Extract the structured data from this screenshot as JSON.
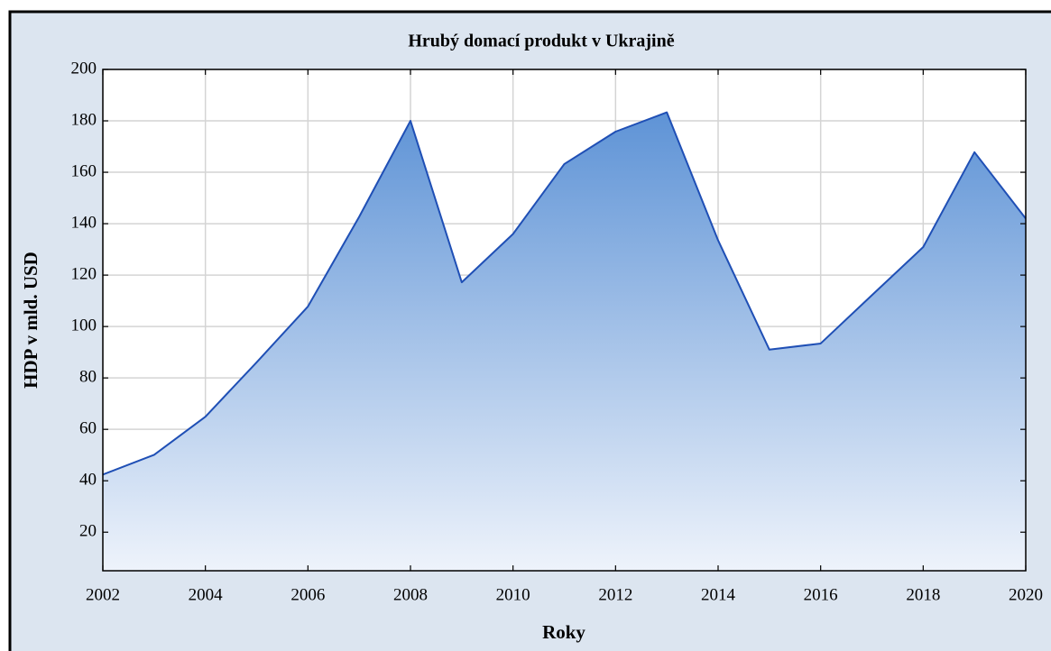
{
  "chart_data": {
    "type": "area",
    "title": "Hrubý domací produkt v Ukrajině",
    "xlabel": "Roky",
    "ylabel": "HDP v mld. USD",
    "x": [
      2002,
      2003,
      2004,
      2005,
      2006,
      2007,
      2008,
      2009,
      2010,
      2011,
      2012,
      2013,
      2014,
      2015,
      2016,
      2017,
      2018,
      2019,
      2020
    ],
    "values": [
      42.4,
      50.1,
      64.9,
      86.1,
      107.8,
      142.7,
      180,
      117.2,
      136,
      163.2,
      175.8,
      183.3,
      133.5,
      91,
      93.4,
      112.2,
      130.9,
      167.8,
      142
    ],
    "color": "#1f4fb5",
    "xlim": [
      2002,
      2020
    ],
    "xticks": [
      2002,
      2004,
      2006,
      2008,
      2010,
      2012,
      2014,
      2016,
      2018,
      2020
    ],
    "ylim": [
      5,
      200
    ],
    "yticks": [
      20,
      40,
      60,
      80,
      100,
      120,
      140,
      160,
      180,
      200
    ],
    "grid": true
  }
}
